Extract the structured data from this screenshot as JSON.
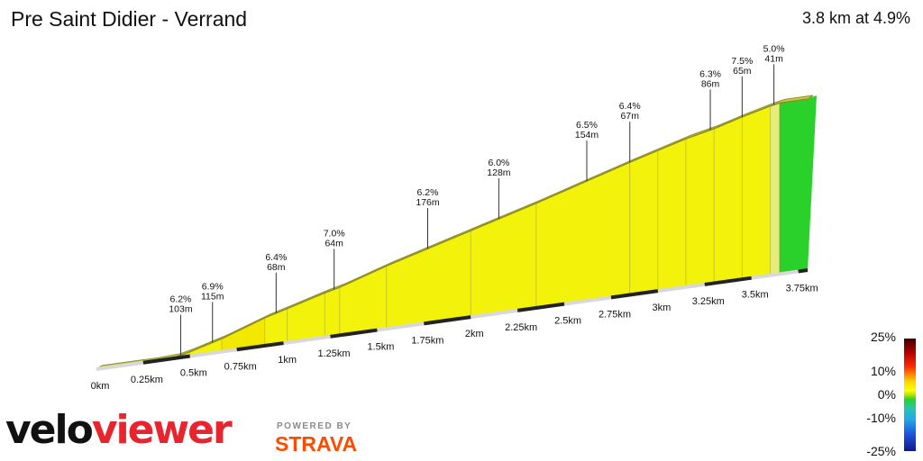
{
  "header": {
    "title": "Pre Saint Didier - Verrand",
    "summary": "3.8 km at 4.9%"
  },
  "chart_data": {
    "type": "area",
    "title": "Pre Saint Didier - Verrand",
    "summary": "3.8 km at 4.9%",
    "distance_unit": "km",
    "x_ticks": [
      "0km",
      "0.25km",
      "0.5km",
      "0.75km",
      "1km",
      "1.25km",
      "1.5km",
      "1.75km",
      "2km",
      "2.25km",
      "2.5km",
      "2.75km",
      "3km",
      "3.25km",
      "3.5km",
      "3.75km"
    ],
    "x_tick_values": [
      0,
      0.25,
      0.5,
      0.75,
      1,
      1.25,
      1.5,
      1.75,
      2,
      2.25,
      2.5,
      2.75,
      3,
      3.25,
      3.5,
      3.75
    ],
    "total_distance": 3.8,
    "average_gradient": 4.9,
    "elevation_profile": {
      "distance": [
        0,
        0.18,
        0.3,
        0.42,
        0.5,
        0.67,
        0.9,
        1.02,
        1.22,
        1.3,
        1.55,
        2.0,
        2.35,
        2.85,
        3.0,
        3.15,
        3.3,
        3.45,
        3.6,
        3.65,
        3.8
      ],
      "elevation": [
        0,
        0,
        0,
        1,
        5,
        15,
        32,
        39,
        51,
        55,
        72,
        99,
        120,
        152,
        161,
        170,
        177,
        186,
        194,
        196,
        196
      ]
    },
    "segments": [
      {
        "start": 0.45,
        "gradient": 6.2,
        "length_m": 103
      },
      {
        "start": 0.62,
        "gradient": 6.9,
        "length_m": 115
      },
      {
        "start": 0.96,
        "gradient": 6.4,
        "length_m": 68
      },
      {
        "start": 1.27,
        "gradient": 7.0,
        "length_m": 64
      },
      {
        "start": 1.77,
        "gradient": 6.2,
        "length_m": 176
      },
      {
        "start": 2.15,
        "gradient": 6.0,
        "length_m": 128
      },
      {
        "start": 2.62,
        "gradient": 6.5,
        "length_m": 154
      },
      {
        "start": 2.85,
        "gradient": 6.4,
        "length_m": 67
      },
      {
        "start": 3.28,
        "gradient": 6.3,
        "length_m": 86
      },
      {
        "start": 3.45,
        "gradient": 7.5,
        "length_m": 65
      },
      {
        "start": 3.62,
        "gradient": 5.0,
        "length_m": 41
      }
    ],
    "gradient_legend": {
      "labels": [
        "25%",
        "10%",
        "0%",
        "-10%",
        "-25%"
      ],
      "values": [
        25,
        10,
        0,
        -10,
        -25
      ]
    },
    "colors": {
      "flat": "#2bd12b",
      "moderate": "#f2f20a",
      "steep": "#ffd400",
      "outline": "#9a9a2a"
    }
  },
  "branding": {
    "velo": "velo",
    "viewer": "viewer",
    "powered_by": "POWERED BY",
    "strava": "STRAVA"
  }
}
